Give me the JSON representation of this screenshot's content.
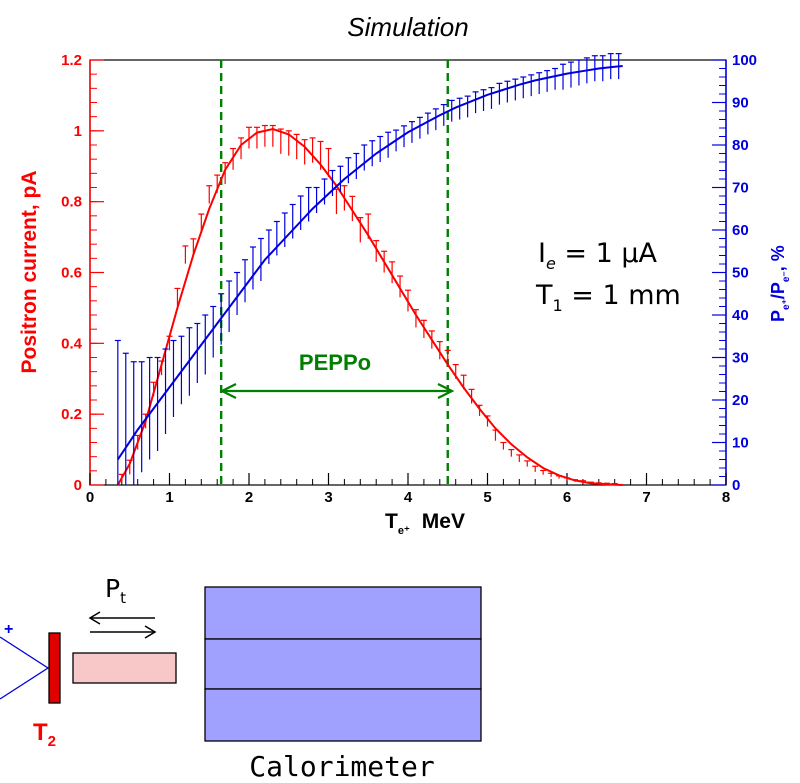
{
  "figure": {
    "title": "Simulation",
    "annotation_current_symbol": "I",
    "annotation_current_sub": "e",
    "annotation_current_value": " = 1 μA",
    "annotation_thickness_symbol": "T",
    "annotation_thickness_sub": "1",
    "annotation_thickness_value": " = 1 mm",
    "window_label": "PEPPo",
    "diagram": {
      "beam_label": "+",
      "target_label": "T",
      "target_sub": "2",
      "polarization_label": "P",
      "polarization_sub": "t",
      "calorimeter_label": "Calorimeter"
    },
    "colors": {
      "current": "#ff0000",
      "polarization": "#0000dd",
      "window": "#008000",
      "calorimeter_fill": "#a0a0ff",
      "converter_fill": "#f8c8c8",
      "target_fill": "#e00000"
    }
  },
  "chart_data": {
    "type": "line",
    "title": "Simulation",
    "xlabel": "T",
    "xlabel_sub": "e⁺",
    "xlabel_unit": "MeV",
    "ylabel_left": "Positron current, pA",
    "ylabel_right": "P",
    "ylabel_right_parts": [
      "P",
      "e⁺",
      "/P",
      "e⁻",
      ", %"
    ],
    "xlim": [
      0,
      8
    ],
    "ylim_left": [
      0,
      1.2
    ],
    "ylim_right": [
      0,
      100
    ],
    "x_ticks": [
      0,
      1,
      2,
      3,
      4,
      5,
      6,
      7,
      8
    ],
    "x_tick_labels": [
      "0",
      "1",
      "2",
      "3",
      "4",
      "5",
      "6",
      "7",
      "8"
    ],
    "y_left_ticks": [
      0,
      0.2,
      0.4,
      0.6,
      0.8,
      1,
      1.2
    ],
    "y_left_tick_labels": [
      "0",
      "0.2",
      "0.4",
      "0.6",
      "0.8",
      "1",
      "1.2"
    ],
    "y_right_ticks": [
      0,
      10,
      20,
      30,
      40,
      50,
      60,
      70,
      80,
      90,
      100
    ],
    "y_right_tick_labels": [
      "0",
      "10",
      "20",
      "30",
      "40",
      "50",
      "60",
      "70",
      "80",
      "90",
      "100"
    ],
    "window": {
      "x_min": 1.65,
      "x_max": 4.5
    },
    "series": [
      {
        "name": "Positron current, pA",
        "axis": "left",
        "fit_x": [
          0.35,
          0.5,
          0.7,
          0.9,
          1.1,
          1.3,
          1.5,
          1.7,
          1.9,
          2.1,
          2.3,
          2.5,
          2.7,
          2.9,
          3.1,
          3.3,
          3.5,
          3.7,
          3.9,
          4.1,
          4.3,
          4.5,
          4.7,
          4.9,
          5.1,
          5.3,
          5.5,
          5.7,
          5.9,
          6.1,
          6.3,
          6.5,
          6.7
        ],
        "fit_y": [
          0.0,
          0.06,
          0.18,
          0.34,
          0.5,
          0.65,
          0.78,
          0.89,
          0.96,
          0.995,
          1.005,
          0.99,
          0.955,
          0.905,
          0.845,
          0.775,
          0.705,
          0.63,
          0.555,
          0.48,
          0.41,
          0.34,
          0.275,
          0.215,
          0.16,
          0.115,
          0.078,
          0.048,
          0.027,
          0.013,
          0.005,
          0.002,
          0.0
        ],
        "points_x": [
          0.4,
          0.5,
          0.6,
          0.7,
          0.8,
          0.9,
          1.0,
          1.1,
          1.2,
          1.3,
          1.4,
          1.5,
          1.6,
          1.7,
          1.8,
          1.9,
          2.0,
          2.1,
          2.2,
          2.3,
          2.4,
          2.5,
          2.6,
          2.7,
          2.8,
          2.9,
          3.0,
          3.1,
          3.2,
          3.3,
          3.4,
          3.5,
          3.6,
          3.7,
          3.8,
          3.9,
          4.0,
          4.1,
          4.2,
          4.3,
          4.4,
          4.5,
          4.6,
          4.7,
          4.8,
          4.9,
          5.0,
          5.1,
          5.2,
          5.3,
          5.4,
          5.5,
          5.6,
          5.7,
          5.8,
          5.9,
          6.0,
          6.1,
          6.2,
          6.3,
          6.4,
          6.5,
          6.6
        ],
        "points_y": [
          0.02,
          0.05,
          0.12,
          0.18,
          0.27,
          0.33,
          0.4,
          0.53,
          0.65,
          0.67,
          0.74,
          0.82,
          0.85,
          0.88,
          0.92,
          0.95,
          0.98,
          0.98,
          0.985,
          0.985,
          0.97,
          0.965,
          0.955,
          0.94,
          0.945,
          0.93,
          0.91,
          0.8,
          0.81,
          0.78,
          0.72,
          0.73,
          0.66,
          0.63,
          0.6,
          0.56,
          0.52,
          0.47,
          0.44,
          0.41,
          0.38,
          0.36,
          0.32,
          0.29,
          0.25,
          0.21,
          0.18,
          0.14,
          0.11,
          0.09,
          0.075,
          0.06,
          0.045,
          0.035,
          0.028,
          0.022,
          0.016,
          0.012,
          0.009,
          0.006,
          0.004,
          0.003,
          0.002
        ],
        "errors": [
          0.01,
          0.02,
          0.02,
          0.02,
          0.02,
          0.02,
          0.02,
          0.025,
          0.025,
          0.025,
          0.025,
          0.025,
          0.025,
          0.03,
          0.03,
          0.03,
          0.03,
          0.03,
          0.03,
          0.03,
          0.035,
          0.035,
          0.035,
          0.035,
          0.035,
          0.04,
          0.04,
          0.035,
          0.035,
          0.035,
          0.035,
          0.035,
          0.03,
          0.03,
          0.03,
          0.03,
          0.03,
          0.025,
          0.025,
          0.025,
          0.025,
          0.02,
          0.02,
          0.02,
          0.02,
          0.015,
          0.015,
          0.015,
          0.01,
          0.01,
          0.01,
          0.008,
          0.008,
          0.006,
          0.005,
          0.004,
          0.004,
          0.003,
          0.003,
          0.002,
          0.002,
          0.002,
          0.002
        ]
      },
      {
        "name": "P_e+/P_e-, %",
        "axis": "right",
        "fit_x": [
          0.35,
          0.6,
          0.8,
          1.0,
          1.2,
          1.4,
          1.6,
          1.8,
          2.0,
          2.2,
          2.4,
          2.6,
          2.8,
          3.0,
          3.2,
          3.4,
          3.6,
          3.8,
          4.0,
          4.2,
          4.4,
          4.6,
          4.8,
          5.0,
          5.2,
          5.4,
          5.6,
          5.8,
          6.0,
          6.2,
          6.4,
          6.6,
          6.7
        ],
        "fit_y": [
          6,
          13,
          18,
          23,
          28,
          33,
          38,
          43,
          48,
          53,
          57,
          61,
          65,
          68.5,
          72,
          75,
          78,
          80.5,
          83,
          85,
          87,
          88.8,
          90.3,
          91.8,
          93,
          94.2,
          95.2,
          96,
          96.8,
          97.4,
          98,
          98.4,
          98.6
        ],
        "points_x": [
          0.35,
          0.45,
          0.55,
          0.65,
          0.75,
          0.85,
          0.95,
          1.05,
          1.15,
          1.25,
          1.35,
          1.45,
          1.55,
          1.65,
          1.75,
          1.85,
          1.95,
          2.05,
          2.15,
          2.25,
          2.35,
          2.45,
          2.55,
          2.65,
          2.75,
          2.85,
          2.95,
          3.05,
          3.15,
          3.25,
          3.35,
          3.45,
          3.55,
          3.65,
          3.75,
          3.85,
          3.95,
          4.05,
          4.15,
          4.25,
          4.35,
          4.45,
          4.55,
          4.65,
          4.75,
          4.85,
          4.95,
          5.05,
          5.15,
          5.25,
          5.35,
          5.45,
          5.55,
          5.65,
          5.75,
          5.85,
          5.95,
          6.05,
          6.15,
          6.25,
          6.35,
          6.45,
          6.55,
          6.65
        ],
        "points_y": [
          17,
          15,
          14,
          16,
          18,
          19,
          22,
          25,
          27,
          29,
          31,
          33,
          36,
          39,
          42,
          45,
          48,
          51,
          53,
          56,
          58,
          60,
          62,
          64,
          66,
          67,
          69,
          71,
          72,
          74,
          75,
          77,
          78,
          79,
          80,
          81,
          82,
          83,
          84,
          85,
          86,
          87,
          88,
          88.5,
          89,
          90,
          90.5,
          91,
          92,
          92.5,
          93,
          93.5,
          94,
          94.5,
          95,
          95.5,
          96,
          96.5,
          97,
          97.5,
          98,
          98,
          98.5,
          98.5
        ],
        "errors": [
          17,
          16,
          15,
          13,
          12,
          11,
          10,
          9,
          8,
          8,
          7,
          7,
          6,
          6,
          6,
          5,
          5,
          5,
          5,
          4,
          4,
          4,
          4,
          4,
          4,
          3,
          3,
          3,
          3,
          3,
          3,
          3,
          3,
          3,
          3,
          2.5,
          2.5,
          2.5,
          2.5,
          2.5,
          2.5,
          2.5,
          2.5,
          2.5,
          2.5,
          2.5,
          2.5,
          2.5,
          2.5,
          2.5,
          2.5,
          2.5,
          2.5,
          2.5,
          2.5,
          2.5,
          3,
          3,
          3,
          3,
          3,
          3,
          3,
          3
        ]
      }
    ]
  }
}
